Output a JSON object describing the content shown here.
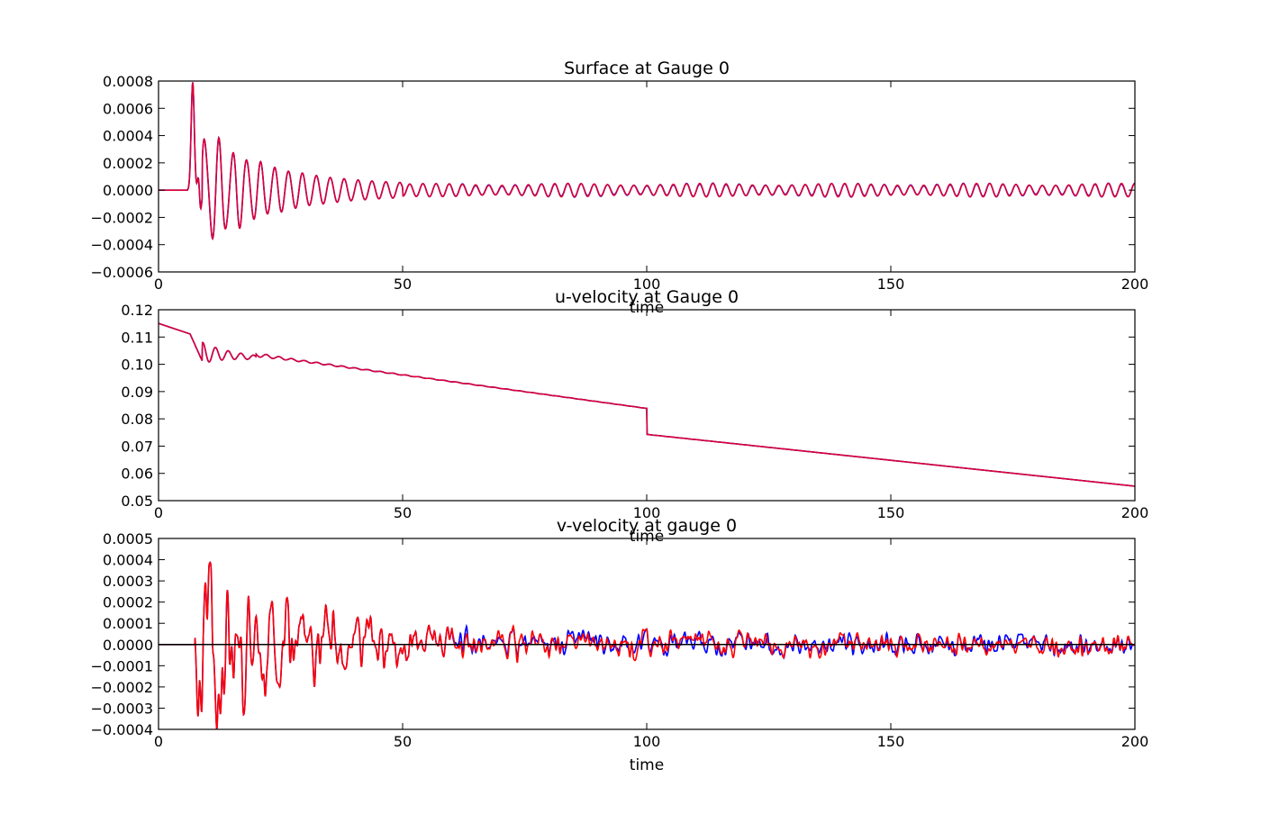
{
  "figure": {
    "background": "#ffffff"
  },
  "colors": {
    "blue": "#0000ff",
    "red": "#ff0000",
    "purple_overlap": "#c8003c",
    "axis": "#000000"
  },
  "chart_data": [
    {
      "type": "line",
      "title": "Surface at Gauge 0",
      "xlabel": "time",
      "ylabel": "",
      "xlim": [
        0,
        200
      ],
      "ylim": [
        -0.0006,
        0.0008
      ],
      "xticks": [
        0,
        50,
        100,
        150,
        200
      ],
      "xtick_labels": [
        "0",
        "50",
        "100",
        "150",
        "200"
      ],
      "yticks": [
        -0.0006,
        -0.0004,
        -0.0002,
        0.0,
        0.0002,
        0.0004,
        0.0006,
        0.0008
      ],
      "ytick_labels": [
        "−0.0006",
        "−0.0004",
        "−0.0002",
        "0.0000",
        "0.0002",
        "0.0004",
        "0.0006",
        "0.0008"
      ],
      "grid": false,
      "zero_line": false,
      "series": [
        {
          "color": "#0000ff",
          "generator": "surface",
          "params": {
            "variant": 0
          }
        },
        {
          "color": "#dc0032",
          "generator": "surface",
          "params": {
            "variant": 1
          }
        }
      ]
    },
    {
      "type": "line",
      "title": "u-velocity at Gauge 0",
      "xlabel": "time",
      "ylabel": "",
      "xlim": [
        0,
        200
      ],
      "ylim": [
        0.05,
        0.12
      ],
      "xticks": [
        0,
        50,
        100,
        150,
        200
      ],
      "xtick_labels": [
        "0",
        "50",
        "100",
        "150",
        "200"
      ],
      "yticks": [
        0.05,
        0.06,
        0.07,
        0.08,
        0.09,
        0.1,
        0.11,
        0.12
      ],
      "ytick_labels": [
        "0.05",
        "0.06",
        "0.07",
        "0.08",
        "0.09",
        "0.10",
        "0.11",
        "0.12"
      ],
      "grid": false,
      "zero_line": false,
      "series": [
        {
          "color": "#0000ff",
          "generator": "uvel",
          "params": {
            "variant": 0
          }
        },
        {
          "color": "#dc0032",
          "generator": "uvel",
          "params": {
            "variant": 1
          }
        }
      ]
    },
    {
      "type": "line",
      "title": "v-velocity at gauge 0",
      "xlabel": "time",
      "ylabel": "",
      "xlim": [
        0,
        200
      ],
      "ylim": [
        -0.0004,
        0.0005
      ],
      "xticks": [
        0,
        50,
        100,
        150,
        200
      ],
      "xtick_labels": [
        "0",
        "50",
        "100",
        "150",
        "200"
      ],
      "yticks": [
        -0.0004,
        -0.0003,
        -0.0002,
        -0.0001,
        0.0,
        0.0001,
        0.0002,
        0.0003,
        0.0004,
        0.0005
      ],
      "ytick_labels": [
        "−0.0004",
        "−0.0003",
        "−0.0002",
        "−0.0001",
        "0.0000",
        "0.0001",
        "0.0002",
        "0.0003",
        "0.0004",
        "0.0005"
      ],
      "grid": false,
      "zero_line": true,
      "series": [
        {
          "color": "#0000ff",
          "generator": "vvel",
          "params": {
            "variant": 0
          }
        },
        {
          "color": "#ff0000",
          "generator": "vvel",
          "params": {
            "variant": 1
          }
        }
      ]
    }
  ]
}
